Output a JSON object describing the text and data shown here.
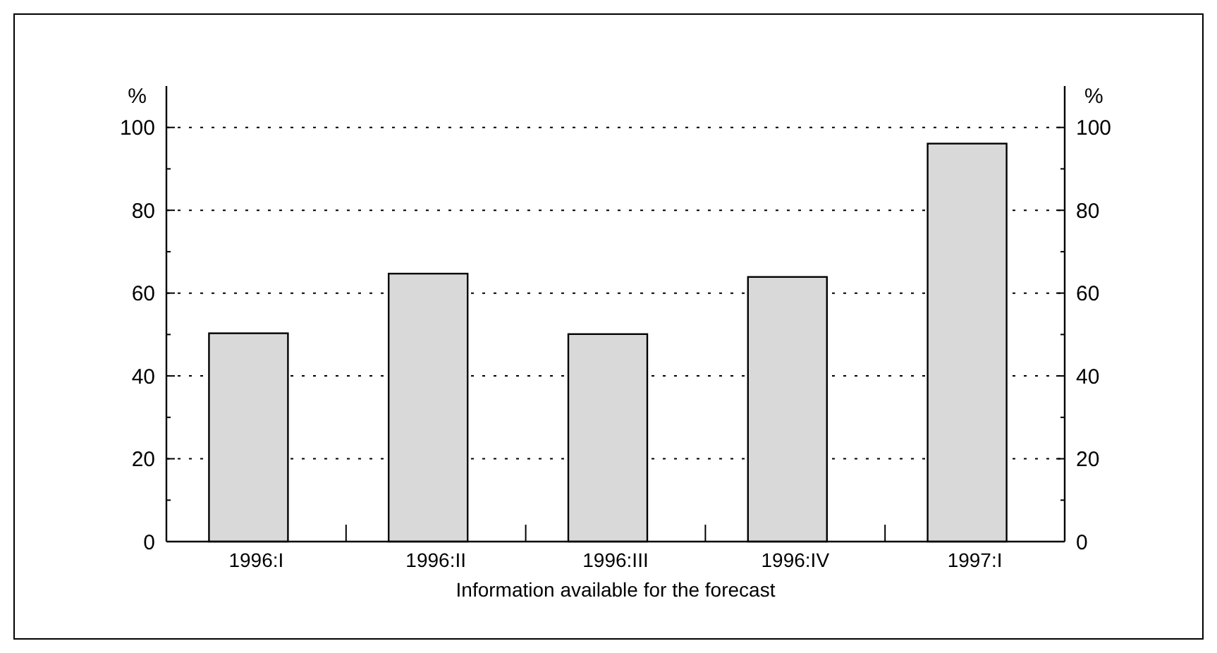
{
  "chart_data": {
    "type": "bar",
    "xlabel": "Information available for the forecast",
    "ylabel": "%",
    "y2label": "%",
    "categories": [
      "1996:I",
      "1996:II",
      "1996:III",
      "1996:IV",
      "1997:I"
    ],
    "values": [
      50.3,
      64.7,
      50.1,
      63.9,
      96.1
    ],
    "color": "#d9d9d9",
    "ylim": [
      0,
      110
    ],
    "yticks": [
      0,
      {
        "value": 10,
        "label": null
      },
      20,
      {
        "value": 30,
        "label": null
      },
      40,
      {
        "value": 50,
        "label": null
      },
      60,
      {
        "value": 70,
        "label": null
      },
      80,
      {
        "value": 90,
        "label": null
      },
      100
    ],
    "y2lim": [
      0,
      110
    ],
    "y2ticks": [
      0,
      {
        "value": 10,
        "label": null
      },
      20,
      {
        "value": 30,
        "label": null
      },
      40,
      {
        "value": 50,
        "label": null
      },
      60,
      {
        "value": 70,
        "label": null
      },
      80,
      {
        "value": 90,
        "label": null
      },
      100
    ],
    "grid": "y"
  }
}
